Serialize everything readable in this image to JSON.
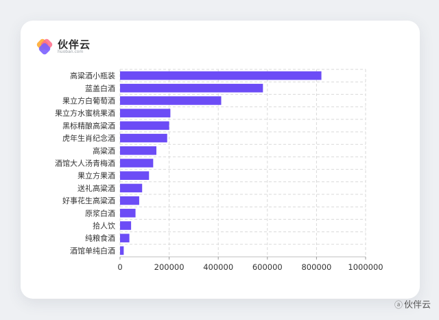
{
  "brand": {
    "name": "伙伴云",
    "sub": "huoban.com",
    "colors": [
      "#7b61ff",
      "#ff6b8a",
      "#ffb347",
      "#4fc3f7"
    ]
  },
  "watermark": {
    "text": "伙伴云",
    "icon": "weibo-at-icon"
  },
  "chart_data": {
    "type": "bar",
    "orientation": "horizontal",
    "bar_color": "#6c4cf6",
    "categories": [
      "高粱酒小瓶装",
      "蓝盖白酒",
      "果立方白葡萄酒",
      "果立方水蜜桃果酒",
      "黑标精酿高粱酒",
      "虎年生肖纪念酒",
      "高粱酒",
      "酒馆大人汤青梅酒",
      "果立方果酒",
      "送礼高粱酒",
      "好事花生高粱酒",
      "原浆白酒",
      "拾人饮",
      "纯粮食酒",
      "酒馆单纯白酒"
    ],
    "values": [
      820000,
      582000,
      412000,
      205000,
      200000,
      192000,
      148000,
      135000,
      118000,
      90000,
      78000,
      63000,
      45000,
      38000,
      15000
    ],
    "xlim": [
      0,
      1000000
    ],
    "xticks": [
      0,
      200000,
      400000,
      600000,
      800000,
      1000000
    ],
    "xticklabels": [
      "0",
      "200000",
      "400000",
      "600000",
      "800000",
      "1000000"
    ],
    "grid": true
  }
}
